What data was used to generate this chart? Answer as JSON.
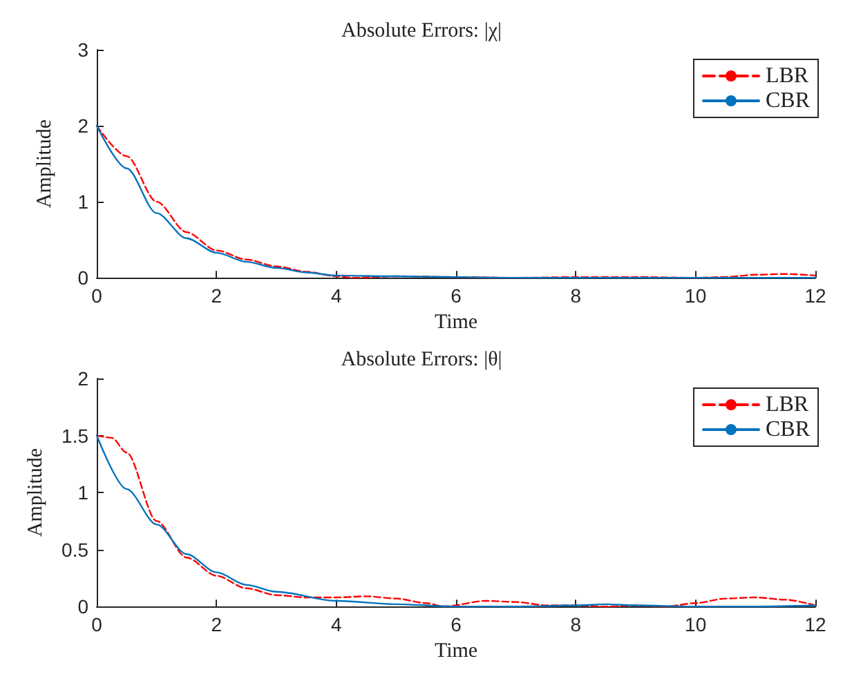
{
  "chart_data": [
    {
      "type": "line",
      "title": "Absolute Errors: |χ|",
      "xlabel": "Time",
      "ylabel": "Amplitude",
      "xlim": [
        0,
        12
      ],
      "xticks": [
        0,
        2,
        4,
        6,
        8,
        10,
        12
      ],
      "ylim": [
        0,
        3
      ],
      "yticks": [
        0,
        1,
        2,
        3
      ],
      "grid": false,
      "legend": "top right",
      "marker": "none",
      "series": [
        {
          "name": "LBR",
          "color": "#ff0000",
          "line_style": "dashed",
          "x": [
            0,
            0.5,
            1,
            1.5,
            2,
            2.5,
            3,
            3.5,
            4,
            4.3,
            5,
            6,
            7,
            8,
            9,
            10,
            10.5,
            11,
            11.5,
            12
          ],
          "values": [
            2,
            1.6,
            1.0,
            0.6,
            0.36,
            0.24,
            0.15,
            0.08,
            0.02,
            0,
            0.02,
            0.01,
            0,
            0.01,
            0.01,
            0,
            0.01,
            0.04,
            0.05,
            0.03
          ]
        },
        {
          "name": "CBR",
          "color": "#0072bd",
          "line_style": "solid",
          "x": [
            0,
            0.5,
            1,
            1.5,
            2,
            2.5,
            3,
            3.5,
            4,
            5,
            6,
            7,
            8,
            9,
            10,
            11,
            12
          ],
          "values": [
            2,
            1.44,
            0.85,
            0.52,
            0.33,
            0.21,
            0.13,
            0.07,
            0.03,
            0.02,
            0.01,
            0,
            0,
            0,
            0,
            0,
            0
          ]
        }
      ]
    },
    {
      "type": "line",
      "title": "Absolute Errors: |θ|",
      "xlabel": "Time",
      "ylabel": "Amplitude",
      "xlim": [
        0,
        12
      ],
      "xticks": [
        0,
        2,
        4,
        6,
        8,
        10,
        12
      ],
      "ylim": [
        0,
        2
      ],
      "yticks": [
        0,
        0.5,
        1,
        1.5,
        2
      ],
      "grid": false,
      "legend": "top right",
      "marker": "none",
      "series": [
        {
          "name": "LBR",
          "color": "#ff0000",
          "line_style": "dashed",
          "x": [
            0,
            0.25,
            0.5,
            1,
            1.5,
            2,
            2.5,
            3,
            3.5,
            4,
            4.5,
            5,
            5.5,
            5.8,
            6.5,
            7,
            7.5,
            8,
            8.5,
            9,
            9.5,
            10,
            10.5,
            11,
            11.5,
            12
          ],
          "values": [
            1.5,
            1.48,
            1.35,
            0.75,
            0.43,
            0.27,
            0.16,
            0.1,
            0.08,
            0.08,
            0.09,
            0.07,
            0.03,
            0,
            0.05,
            0.04,
            0.01,
            0.01,
            0,
            0.01,
            0,
            0.03,
            0.07,
            0.08,
            0.06,
            0.01
          ]
        },
        {
          "name": "CBR",
          "color": "#0072bd",
          "line_style": "solid",
          "x": [
            0,
            0.5,
            1,
            1.5,
            2,
            2.5,
            3,
            4,
            5,
            6,
            7,
            8,
            8.5,
            9,
            10,
            11,
            12
          ],
          "values": [
            1.5,
            1.03,
            0.72,
            0.46,
            0.3,
            0.19,
            0.13,
            0.05,
            0.02,
            0,
            0,
            0.01,
            0.02,
            0.01,
            0,
            0,
            0.01
          ]
        }
      ]
    }
  ]
}
